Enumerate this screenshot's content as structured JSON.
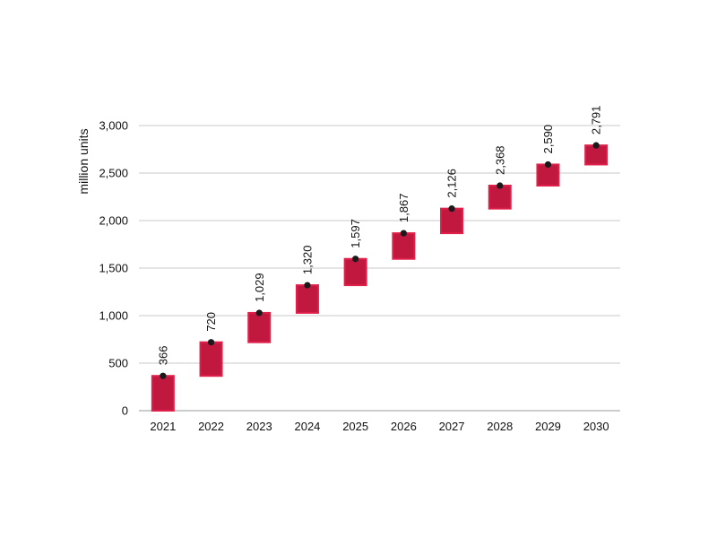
{
  "chart_data": {
    "type": "bar",
    "subtype": "waterfall",
    "title": "",
    "xlabel": "",
    "ylabel": "million units",
    "categories": [
      "2021",
      "2022",
      "2023",
      "2024",
      "2025",
      "2026",
      "2027",
      "2028",
      "2029",
      "2030"
    ],
    "values": [
      366,
      720,
      1029,
      1320,
      1597,
      1867,
      2126,
      2368,
      2590,
      2791
    ],
    "data_labels": [
      "366",
      "720",
      "1,029",
      "1,320",
      "1,597",
      "1,867",
      "2,126",
      "2,368",
      "2,590",
      "2,791"
    ],
    "bar_ranges": [
      [
        0,
        366
      ],
      [
        366,
        720
      ],
      [
        720,
        1029
      ],
      [
        1029,
        1320
      ],
      [
        1320,
        1597
      ],
      [
        1597,
        1867
      ],
      [
        1867,
        2126
      ],
      [
        2126,
        2368
      ],
      [
        2368,
        2590
      ],
      [
        2590,
        2791
      ]
    ],
    "ylim": [
      0,
      3000
    ],
    "yticks": [
      0,
      500,
      1000,
      1500,
      2000,
      2500,
      3000
    ],
    "ytick_labels": [
      "0",
      "500",
      "1,000",
      "1,500",
      "2,000",
      "2,500",
      "3,000"
    ],
    "grid": true,
    "legend": "none",
    "colors": {
      "bar_fill": "#c0183e",
      "bar_edge": "#e0204a",
      "marker": "#1a1a1a",
      "grid": "#c8c8c8"
    }
  }
}
